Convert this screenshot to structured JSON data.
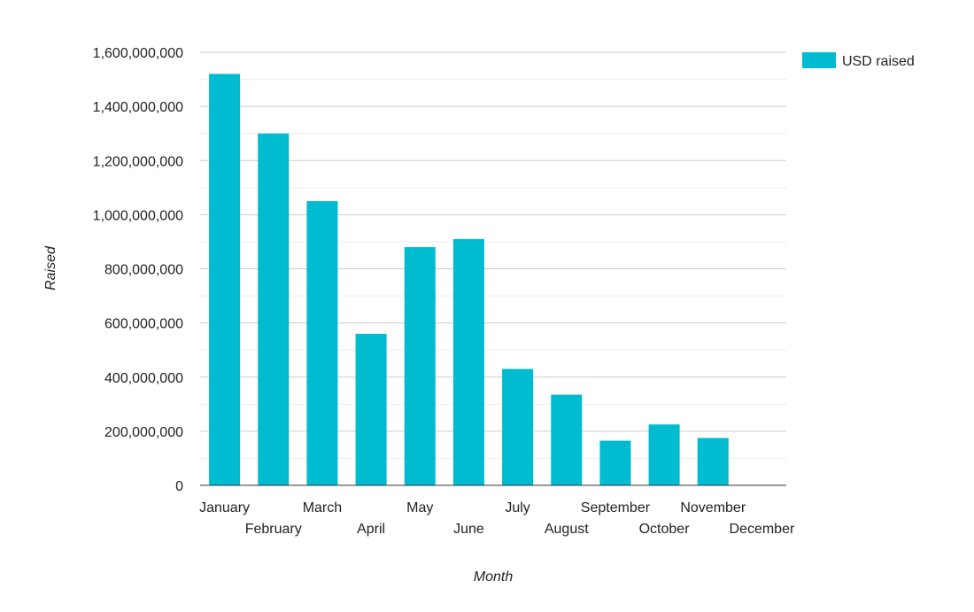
{
  "chart_data": {
    "type": "bar",
    "categories": [
      "January",
      "February",
      "March",
      "April",
      "May",
      "June",
      "July",
      "August",
      "September",
      "October",
      "November",
      "December"
    ],
    "series": [
      {
        "name": "USD raised",
        "color": "#00BCD0",
        "values": [
          1520000000,
          1300000000,
          1050000000,
          560000000,
          880000000,
          910000000,
          430000000,
          335000000,
          165000000,
          225000000,
          175000000,
          0
        ]
      }
    ],
    "xlabel": "Month",
    "ylabel": "Raised",
    "ylim": [
      0,
      1600000000
    ],
    "yticks": [
      0,
      200000000,
      400000000,
      600000000,
      800000000,
      1000000000,
      1200000000,
      1400000000,
      1600000000
    ],
    "ytick_labels": [
      "0",
      "200,000,000",
      "400,000,000",
      "600,000,000",
      "800,000,000",
      "1,000,000,000",
      "1,200,000,000",
      "1,400,000,000",
      "1,600,000,000"
    ],
    "grid": true,
    "minor_grid": true,
    "legend_position": "top-right"
  }
}
